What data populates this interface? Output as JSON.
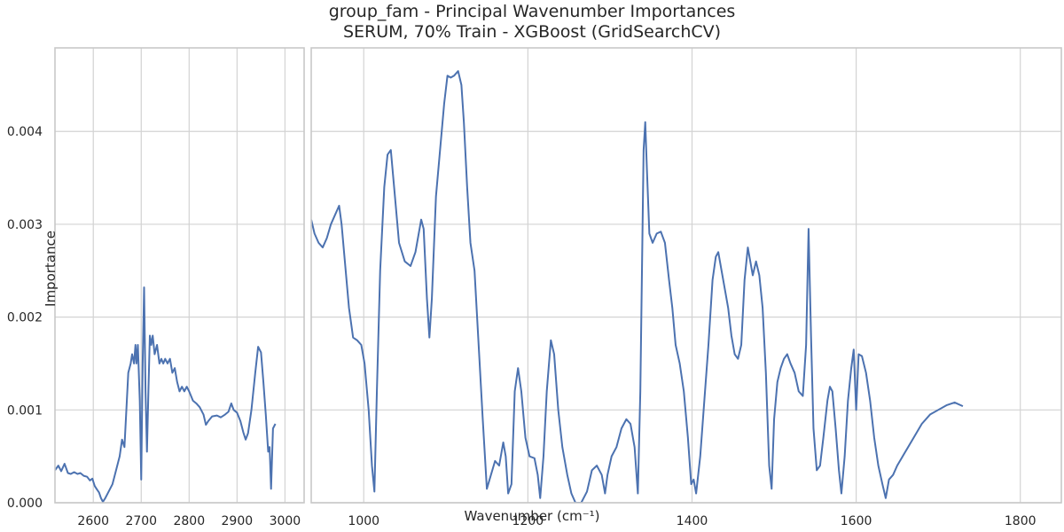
{
  "chart_data": {
    "type": "line",
    "title": "group_fam - Principal Wavenumber Importances",
    "subtitle": "SERUM, 70% Train - XGBoost (GridSearchCV)",
    "xlabel": "Wavenumber (cm⁻¹)",
    "ylabel": "Importance",
    "ylim": [
      0,
      0.0049
    ],
    "yticks": [
      "0.000",
      "0.001",
      "0.002",
      "0.003",
      "0.004"
    ],
    "ytick_values": [
      0,
      0.001,
      0.002,
      0.003,
      0.004
    ],
    "grid": true,
    "series_color": "#4c72b0",
    "panels": [
      {
        "name": "high-wavenumber",
        "xlim": [
          2520,
          3040
        ],
        "xticks": [
          "2600",
          "2700",
          "2800",
          "2900",
          "3000"
        ],
        "xtick_values": [
          2600,
          2700,
          2800,
          2900,
          3000
        ],
        "points": [
          [
            2520,
            0.00035
          ],
          [
            2527,
            0.0004
          ],
          [
            2533,
            0.00034
          ],
          [
            2540,
            0.00042
          ],
          [
            2547,
            0.00032
          ],
          [
            2553,
            0.00031
          ],
          [
            2560,
            0.00033
          ],
          [
            2567,
            0.00031
          ],
          [
            2573,
            0.00032
          ],
          [
            2580,
            0.00029
          ],
          [
            2587,
            0.00028
          ],
          [
            2593,
            0.00024
          ],
          [
            2598,
            0.00026
          ],
          [
            2603,
            0.00018
          ],
          [
            2608,
            0.00014
          ],
          [
            2612,
            0.00011
          ],
          [
            2616,
            5e-05
          ],
          [
            2620,
            1e-05
          ],
          [
            2625,
            5e-05
          ],
          [
            2630,
            0.0001
          ],
          [
            2640,
            0.0002
          ],
          [
            2645,
            0.0003
          ],
          [
            2650,
            0.0004
          ],
          [
            2655,
            0.0005
          ],
          [
            2660,
            0.00068
          ],
          [
            2665,
            0.0006
          ],
          [
            2670,
            0.0011
          ],
          [
            2673,
            0.0014
          ],
          [
            2678,
            0.0015
          ],
          [
            2681,
            0.0016
          ],
          [
            2685,
            0.0015
          ],
          [
            2688,
            0.0017
          ],
          [
            2690,
            0.0015
          ],
          [
            2693,
            0.0017
          ],
          [
            2697,
            0.0011
          ],
          [
            2700,
            0.00025
          ],
          [
            2703,
            0.0015
          ],
          [
            2706,
            0.00232
          ],
          [
            2709,
            0.0012
          ],
          [
            2712,
            0.00055
          ],
          [
            2715,
            0.0012
          ],
          [
            2718,
            0.0018
          ],
          [
            2721,
            0.0017
          ],
          [
            2724,
            0.0018
          ],
          [
            2728,
            0.0016
          ],
          [
            2733,
            0.0017
          ],
          [
            2738,
            0.0015
          ],
          [
            2742,
            0.00155
          ],
          [
            2746,
            0.0015
          ],
          [
            2750,
            0.00155
          ],
          [
            2755,
            0.0015
          ],
          [
            2760,
            0.00155
          ],
          [
            2765,
            0.0014
          ],
          [
            2770,
            0.00145
          ],
          [
            2775,
            0.0013
          ],
          [
            2780,
            0.0012
          ],
          [
            2785,
            0.00125
          ],
          [
            2790,
            0.0012
          ],
          [
            2795,
            0.00125
          ],
          [
            2800,
            0.0012
          ],
          [
            2808,
            0.0011
          ],
          [
            2815,
            0.00107
          ],
          [
            2822,
            0.00103
          ],
          [
            2830,
            0.00095
          ],
          [
            2835,
            0.00084
          ],
          [
            2840,
            0.00088
          ],
          [
            2848,
            0.00093
          ],
          [
            2858,
            0.00094
          ],
          [
            2866,
            0.00092
          ],
          [
            2875,
            0.00095
          ],
          [
            2882,
            0.00098
          ],
          [
            2888,
            0.00107
          ],
          [
            2893,
            0.001
          ],
          [
            2900,
            0.00097
          ],
          [
            2907,
            0.00088
          ],
          [
            2913,
            0.00076
          ],
          [
            2918,
            0.00068
          ],
          [
            2923,
            0.00075
          ],
          [
            2930,
            0.001
          ],
          [
            2938,
            0.0014
          ],
          [
            2944,
            0.00168
          ],
          [
            2950,
            0.00162
          ],
          [
            2955,
            0.0013
          ],
          [
            2960,
            0.00095
          ],
          [
            2965,
            0.00055
          ],
          [
            2968,
            0.0006
          ],
          [
            2971,
            0.00015
          ],
          [
            2975,
            0.0008
          ],
          [
            2980,
            0.00085
          ]
        ]
      },
      {
        "name": "fingerprint",
        "xlim": [
          936,
          1850
        ],
        "xticks": [
          "1000",
          "1200",
          "1400",
          "1600",
          "1800"
        ],
        "xtick_values": [
          1000,
          1200,
          1400,
          1600,
          1800
        ],
        "points": [
          [
            936,
            0.00305
          ],
          [
            940,
            0.0029
          ],
          [
            945,
            0.0028
          ],
          [
            950,
            0.00275
          ],
          [
            955,
            0.00285
          ],
          [
            960,
            0.003
          ],
          [
            965,
            0.0031
          ],
          [
            970,
            0.0032
          ],
          [
            973,
            0.003
          ],
          [
            977,
            0.0026
          ],
          [
            982,
            0.0021
          ],
          [
            987,
            0.00178
          ],
          [
            992,
            0.00175
          ],
          [
            997,
            0.0017
          ],
          [
            1001,
            0.0015
          ],
          [
            1006,
            0.001
          ],
          [
            1010,
            0.0004
          ],
          [
            1013,
            0.00012
          ],
          [
            1016,
            0.0012
          ],
          [
            1020,
            0.0025
          ],
          [
            1025,
            0.0034
          ],
          [
            1029,
            0.00375
          ],
          [
            1033,
            0.0038
          ],
          [
            1037,
            0.0034
          ],
          [
            1043,
            0.0028
          ],
          [
            1050,
            0.0026
          ],
          [
            1057,
            0.00255
          ],
          [
            1063,
            0.0027
          ],
          [
            1070,
            0.00305
          ],
          [
            1073,
            0.00295
          ],
          [
            1077,
            0.0022
          ],
          [
            1080,
            0.00178
          ],
          [
            1083,
            0.0022
          ],
          [
            1088,
            0.0033
          ],
          [
            1093,
            0.0038
          ],
          [
            1098,
            0.0043
          ],
          [
            1102,
            0.0046
          ],
          [
            1106,
            0.00458
          ],
          [
            1110,
            0.0046
          ],
          [
            1115,
            0.00465
          ],
          [
            1119,
            0.0045
          ],
          [
            1122,
            0.0041
          ],
          [
            1126,
            0.0034
          ],
          [
            1130,
            0.0028
          ],
          [
            1135,
            0.0025
          ],
          [
            1140,
            0.0017
          ],
          [
            1145,
            0.0009
          ],
          [
            1150,
            0.00015
          ],
          [
            1155,
            0.0003
          ],
          [
            1160,
            0.00045
          ],
          [
            1165,
            0.0004
          ],
          [
            1170,
            0.00065
          ],
          [
            1173,
            0.0005
          ],
          [
            1176,
            0.0001
          ],
          [
            1180,
            0.0002
          ],
          [
            1184,
            0.0012
          ],
          [
            1188,
            0.00145
          ],
          [
            1192,
            0.0012
          ],
          [
            1197,
            0.0007
          ],
          [
            1202,
            0.0005
          ],
          [
            1208,
            0.00048
          ],
          [
            1212,
            0.0003
          ],
          [
            1215,
            5e-05
          ],
          [
            1219,
            0.0005
          ],
          [
            1223,
            0.0012
          ],
          [
            1228,
            0.00175
          ],
          [
            1232,
            0.0016
          ],
          [
            1237,
            0.001
          ],
          [
            1242,
            0.0006
          ],
          [
            1248,
            0.0003
          ],
          [
            1253,
            0.0001
          ],
          [
            1258,
            0.0
          ],
          [
            1265,
            0.0
          ],
          [
            1272,
            0.00012
          ],
          [
            1278,
            0.00035
          ],
          [
            1284,
            0.0004
          ],
          [
            1290,
            0.0003
          ],
          [
            1294,
            0.0001
          ],
          [
            1297,
            0.0003
          ],
          [
            1302,
            0.0005
          ],
          [
            1308,
            0.0006
          ],
          [
            1314,
            0.0008
          ],
          [
            1320,
            0.0009
          ],
          [
            1325,
            0.00085
          ],
          [
            1330,
            0.0006
          ],
          [
            1334,
            0.0001
          ],
          [
            1337,
            0.0012
          ],
          [
            1341,
            0.0038
          ],
          [
            1343,
            0.0041
          ],
          [
            1345,
            0.0036
          ],
          [
            1348,
            0.0029
          ],
          [
            1352,
            0.0028
          ],
          [
            1357,
            0.0029
          ],
          [
            1362,
            0.00292
          ],
          [
            1367,
            0.0028
          ],
          [
            1372,
            0.0024
          ],
          [
            1376,
            0.0021
          ],
          [
            1380,
            0.0017
          ],
          [
            1385,
            0.0015
          ],
          [
            1390,
            0.0012
          ],
          [
            1395,
            0.0007
          ],
          [
            1399,
            0.0002
          ],
          [
            1402,
            0.00025
          ],
          [
            1405,
            0.0001
          ],
          [
            1410,
            0.0005
          ],
          [
            1415,
            0.0011
          ],
          [
            1420,
            0.0017
          ],
          [
            1425,
            0.0024
          ],
          [
            1429,
            0.00265
          ],
          [
            1432,
            0.0027
          ],
          [
            1436,
            0.0025
          ],
          [
            1440,
            0.0023
          ],
          [
            1444,
            0.0021
          ],
          [
            1448,
            0.0018
          ],
          [
            1452,
            0.0016
          ],
          [
            1456,
            0.00155
          ],
          [
            1460,
            0.0017
          ],
          [
            1464,
            0.0024
          ],
          [
            1468,
            0.00275
          ],
          [
            1471,
            0.0026
          ],
          [
            1474,
            0.00245
          ],
          [
            1478,
            0.0026
          ],
          [
            1482,
            0.00245
          ],
          [
            1486,
            0.0021
          ],
          [
            1490,
            0.0014
          ],
          [
            1494,
            0.0004
          ],
          [
            1497,
            0.00015
          ],
          [
            1500,
            0.0009
          ],
          [
            1504,
            0.0013
          ],
          [
            1508,
            0.00145
          ],
          [
            1512,
            0.00155
          ],
          [
            1516,
            0.0016
          ],
          [
            1520,
            0.0015
          ],
          [
            1525,
            0.0014
          ],
          [
            1530,
            0.0012
          ],
          [
            1535,
            0.00115
          ],
          [
            1539,
            0.0017
          ],
          [
            1542,
            0.00295
          ],
          [
            1545,
            0.0018
          ],
          [
            1548,
            0.0008
          ],
          [
            1552,
            0.00035
          ],
          [
            1556,
            0.0004
          ],
          [
            1560,
            0.0007
          ],
          [
            1565,
            0.0011
          ],
          [
            1568,
            0.00125
          ],
          [
            1571,
            0.0012
          ],
          [
            1575,
            0.0008
          ],
          [
            1579,
            0.00035
          ],
          [
            1582,
            0.0001
          ],
          [
            1586,
            0.0005
          ],
          [
            1590,
            0.0011
          ],
          [
            1594,
            0.00145
          ],
          [
            1597,
            0.00165
          ],
          [
            1600,
            0.001
          ],
          [
            1603,
            0.0016
          ],
          [
            1607,
            0.00158
          ],
          [
            1612,
            0.0014
          ],
          [
            1617,
            0.0011
          ],
          [
            1622,
            0.0007
          ],
          [
            1627,
            0.0004
          ],
          [
            1632,
            0.0002
          ],
          [
            1636,
            5e-05
          ],
          [
            1640,
            0.00025
          ],
          [
            1645,
            0.0003
          ],
          [
            1650,
            0.0004
          ],
          [
            1660,
            0.00055
          ],
          [
            1670,
            0.0007
          ],
          [
            1680,
            0.00085
          ],
          [
            1690,
            0.00095
          ],
          [
            1700,
            0.001
          ],
          [
            1710,
            0.00105
          ],
          [
            1720,
            0.00108
          ],
          [
            1730,
            0.00104
          ]
        ]
      }
    ]
  }
}
